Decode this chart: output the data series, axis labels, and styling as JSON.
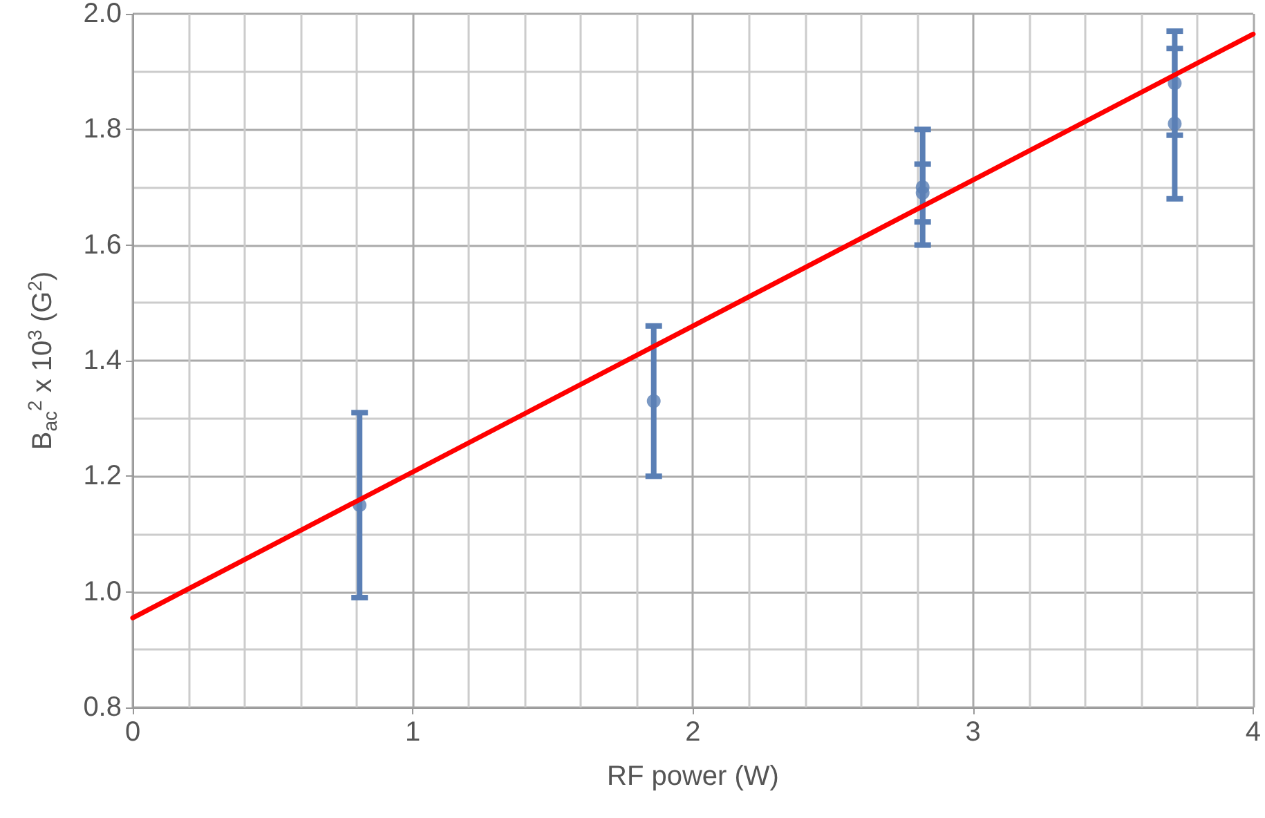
{
  "chart_data": {
    "type": "scatter",
    "xlabel": "RF power (W)",
    "ylabel": "B$_{ac}$$^{2}$ x 10$^{3}$ (G$^{2}$)",
    "series": [
      {
        "marker": "circle",
        "color": "#5a7fb5",
        "x": [
          0.81,
          1.86,
          2.82,
          2.82,
          3.72,
          3.72
        ],
        "values": [
          1.15,
          1.33,
          1.7,
          1.69,
          1.88,
          1.81
        ],
        "errors": [
          [
            0.99,
            1.31
          ],
          [
            1.2,
            1.46
          ],
          [
            1.64,
            1.74
          ],
          [
            1.6,
            1.8
          ],
          [
            1.79,
            1.97
          ],
          [
            1.68,
            1.94
          ]
        ]
      },
      {
        "type": "line",
        "color": "#ff0000",
        "x": [
          0,
          4
        ],
        "values": [
          0.955,
          1.965
        ]
      }
    ],
    "xlim": [
      0,
      4
    ],
    "xticks": [
      0,
      1,
      2,
      3,
      4
    ],
    "ylim": [
      0.8,
      2.0
    ],
    "yticks": [
      0.8,
      {
        "value": 1.0,
        "label": "1.0"
      },
      1.2,
      1.4,
      1.6,
      1.8,
      {
        "value": 2.0,
        "label": "2.0"
      }
    ],
    "grid": true
  }
}
